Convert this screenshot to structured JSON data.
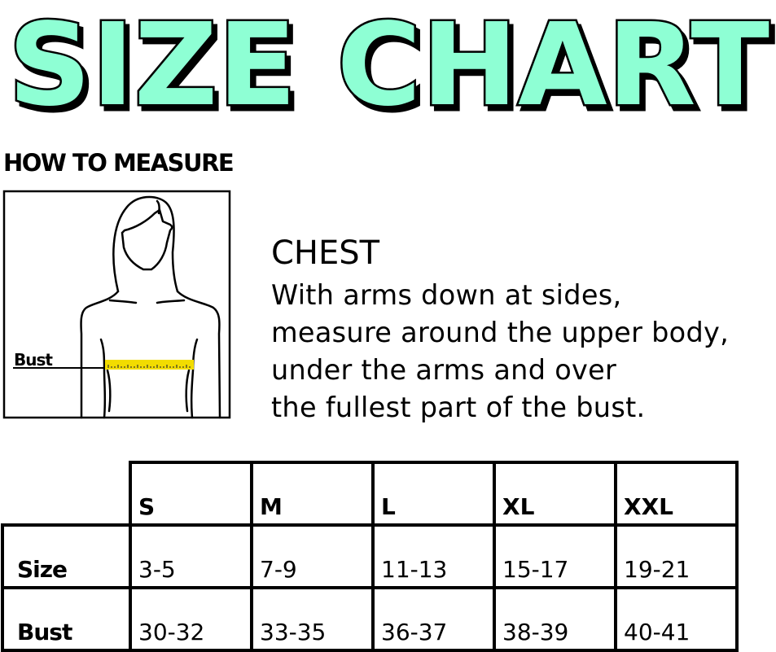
{
  "title": "SIZE CHART",
  "title_color": "#8effd4",
  "how_to_measure": "HOW TO MEASURE",
  "figure": {
    "label": "Bust",
    "tape_color": "#f2dc00"
  },
  "chest": {
    "heading": "CHEST",
    "lines": [
      "With arms down at sides,",
      "measure around the upper body,",
      "under the arms and over",
      "the fullest part of the bust."
    ]
  },
  "table": {
    "columns": [
      "S",
      "M",
      "L",
      "XL",
      "XXL"
    ],
    "rows": [
      {
        "label": "Size",
        "values": [
          "3-5",
          "7-9",
          "11-13",
          "15-17",
          "19-21"
        ]
      },
      {
        "label": "Bust",
        "values": [
          "30-32",
          "33-35",
          "36-37",
          "38-39",
          "40-41"
        ]
      }
    ]
  }
}
